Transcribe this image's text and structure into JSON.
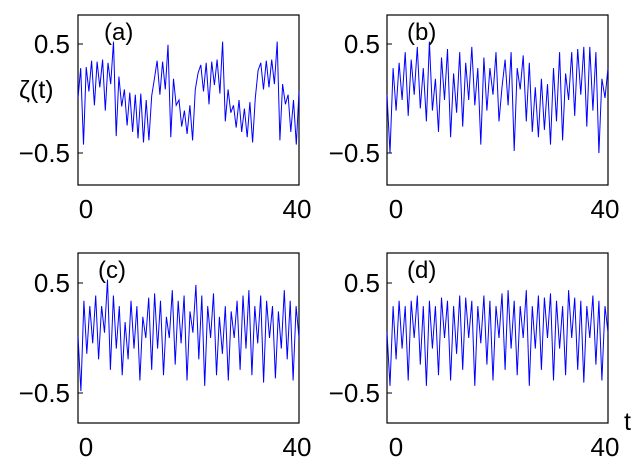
{
  "chart_data": [
    {
      "type": "line",
      "panel_label": "(a)",
      "ylabel": "ζ(t)",
      "xlabel": "",
      "xlim": [
        0,
        40
      ],
      "ylim": [
        -0.8,
        0.8
      ],
      "xticks": [
        "0",
        "40"
      ],
      "yticks": [
        "0.5",
        "−0.5"
      ],
      "series": [
        {
          "values": [
            0.02,
            0.3,
            -0.42,
            0.31,
            0.08,
            0.37,
            -0.05,
            0.36,
            0.12,
            0.38,
            -0.1,
            0.35,
            0.15,
            0.55,
            -0.34,
            0.22,
            -0.06,
            0.1,
            -0.24,
            0.07,
            -0.3,
            0.05,
            -0.36,
            0.06,
            -0.4,
            0.0,
            -0.38,
            0.04,
            0.2,
            0.37,
            0.05,
            0.36,
            0.1,
            0.52,
            -0.35,
            0.2,
            -0.05,
            0.0,
            -0.25,
            -0.1,
            -0.32,
            -0.05,
            -0.38,
            0.1,
            0.25,
            0.33,
            0.08,
            0.35,
            -0.04,
            0.36,
            0.14,
            0.38,
            0.06,
            0.55,
            -0.2,
            0.1,
            -0.12,
            -0.05,
            -0.26,
            0.0,
            -0.3,
            -0.08,
            -0.35,
            -0.02,
            -0.4,
            0.02,
            0.28,
            0.35,
            0.1,
            0.37,
            0.12,
            0.38,
            0.15,
            0.55,
            -0.38,
            0.15,
            -0.04,
            0.05,
            -0.3,
            0.0,
            -0.42,
            0.08
          ]
        }
      ]
    },
    {
      "type": "line",
      "panel_label": "(b)",
      "xlabel": "",
      "xlim": [
        0,
        40
      ],
      "ylim": [
        -0.8,
        0.8
      ],
      "xticks": [
        "0",
        "40"
      ],
      "yticks": [
        "0.5",
        "−0.5"
      ],
      "series": [
        {
          "values": [
            0.05,
            -0.5,
            0.3,
            -0.1,
            0.35,
            0.0,
            0.45,
            -0.15,
            0.38,
            0.05,
            0.5,
            -0.08,
            0.3,
            -0.2,
            0.55,
            -0.1,
            0.2,
            -0.3,
            0.4,
            0.0,
            0.48,
            -0.35,
            0.25,
            -0.12,
            0.45,
            -0.25,
            0.35,
            0.0,
            0.5,
            -0.05,
            0.3,
            -0.42,
            0.4,
            -0.1,
            0.3,
            0.05,
            0.45,
            -0.2,
            0.12,
            0.38,
            -0.05,
            0.45,
            -0.48,
            0.3,
            0.1,
            0.42,
            -0.2,
            0.35,
            -0.3,
            0.12,
            -0.35,
            0.2,
            -0.28,
            0.15,
            -0.42,
            0.3,
            -0.2,
            0.45,
            -0.38,
            0.25,
            0.0,
            0.45,
            -0.15,
            0.48,
            0.05,
            0.5,
            -0.25,
            0.5,
            -0.1,
            0.45,
            -0.5,
            0.2,
            0.02,
            0.3
          ]
        }
      ]
    },
    {
      "type": "line",
      "panel_label": "(c)",
      "xlabel": "",
      "xlim": [
        0,
        40
      ],
      "ylim": [
        -0.8,
        0.8
      ],
      "xticks": [
        "0",
        "40"
      ],
      "yticks": [
        "0.5",
        "−0.5"
      ],
      "series": [
        {
          "values": [
            0.02,
            -0.5,
            0.35,
            -0.15,
            0.3,
            -0.05,
            0.4,
            -0.2,
            0.3,
            0.05,
            0.55,
            -0.3,
            0.4,
            -0.1,
            0.3,
            -0.35,
            0.15,
            -0.2,
            0.35,
            -0.1,
            0.3,
            -0.4,
            0.2,
            0.0,
            0.38,
            -0.3,
            0.42,
            -0.1,
            0.35,
            -0.35,
            0.2,
            0.0,
            0.45,
            -0.25,
            0.35,
            -0.05,
            0.4,
            -0.4,
            0.25,
            0.05,
            0.5,
            -0.2,
            0.4,
            -0.45,
            0.3,
            0.0,
            0.42,
            -0.35,
            0.2,
            -0.15,
            0.3,
            -0.4,
            0.25,
            0.0,
            0.35,
            -0.3,
            0.4,
            -0.1,
            0.45,
            -0.35,
            0.3,
            -0.05,
            0.4,
            -0.42,
            0.35,
            0.0,
            0.3,
            -0.38,
            0.25,
            -0.1,
            0.45,
            -0.2,
            0.35,
            -0.4,
            0.3,
            0.0
          ]
        }
      ]
    },
    {
      "type": "line",
      "panel_label": "(d)",
      "xlabel": "t",
      "xlim": [
        0,
        40
      ],
      "ylim": [
        -0.8,
        0.8
      ],
      "xticks": [
        "0",
        "40"
      ],
      "yticks": [
        "0.5",
        "−0.5"
      ],
      "series": [
        {
          "values": [
            0.05,
            -0.45,
            0.3,
            -0.2,
            0.35,
            -0.1,
            0.3,
            -0.4,
            0.35,
            0.0,
            0.4,
            -0.25,
            0.3,
            -0.45,
            0.35,
            -0.1,
            0.3,
            -0.35,
            0.38,
            0.0,
            0.35,
            -0.4,
            0.3,
            -0.15,
            0.4,
            -0.3,
            0.38,
            0.0,
            0.35,
            -0.45,
            0.3,
            -0.05,
            0.4,
            -0.25,
            0.35,
            -0.4,
            0.3,
            0.0,
            0.42,
            -0.3,
            0.45,
            -0.1,
            0.35,
            -0.35,
            0.3,
            0.0,
            0.45,
            -0.45,
            0.3,
            -0.1,
            0.4,
            -0.3,
            0.38,
            0.0,
            0.42,
            -0.4,
            0.35,
            -0.1,
            0.3,
            -0.35,
            0.45,
            0.0,
            0.38,
            -0.3,
            0.35,
            -0.42,
            0.3,
            0.0,
            0.4,
            -0.25,
            0.35,
            -0.4,
            0.3,
            0.05
          ]
        }
      ]
    }
  ]
}
